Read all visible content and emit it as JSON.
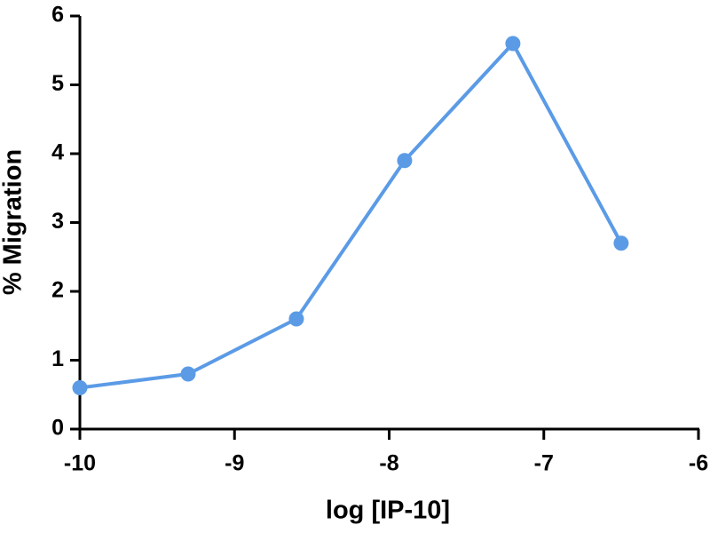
{
  "chart_data": {
    "type": "line",
    "x_label": "log [IP-10]",
    "y_label": "% Migration",
    "x": [
      -10,
      -9.3,
      -8.6,
      -7.9,
      -7.2,
      -6.5
    ],
    "series": [
      {
        "name": "IP-10",
        "color": "#5b9be6",
        "values": [
          0.6,
          0.8,
          1.6,
          3.9,
          5.6,
          2.7
        ]
      }
    ],
    "xlim": [
      -10,
      -6
    ],
    "xticks": [
      -10,
      -9,
      -8,
      -7,
      -6
    ],
    "ylim": [
      0,
      6
    ],
    "yticks": [
      0,
      1,
      2,
      3,
      4,
      5,
      6
    ],
    "grid": false,
    "legend": false
  }
}
